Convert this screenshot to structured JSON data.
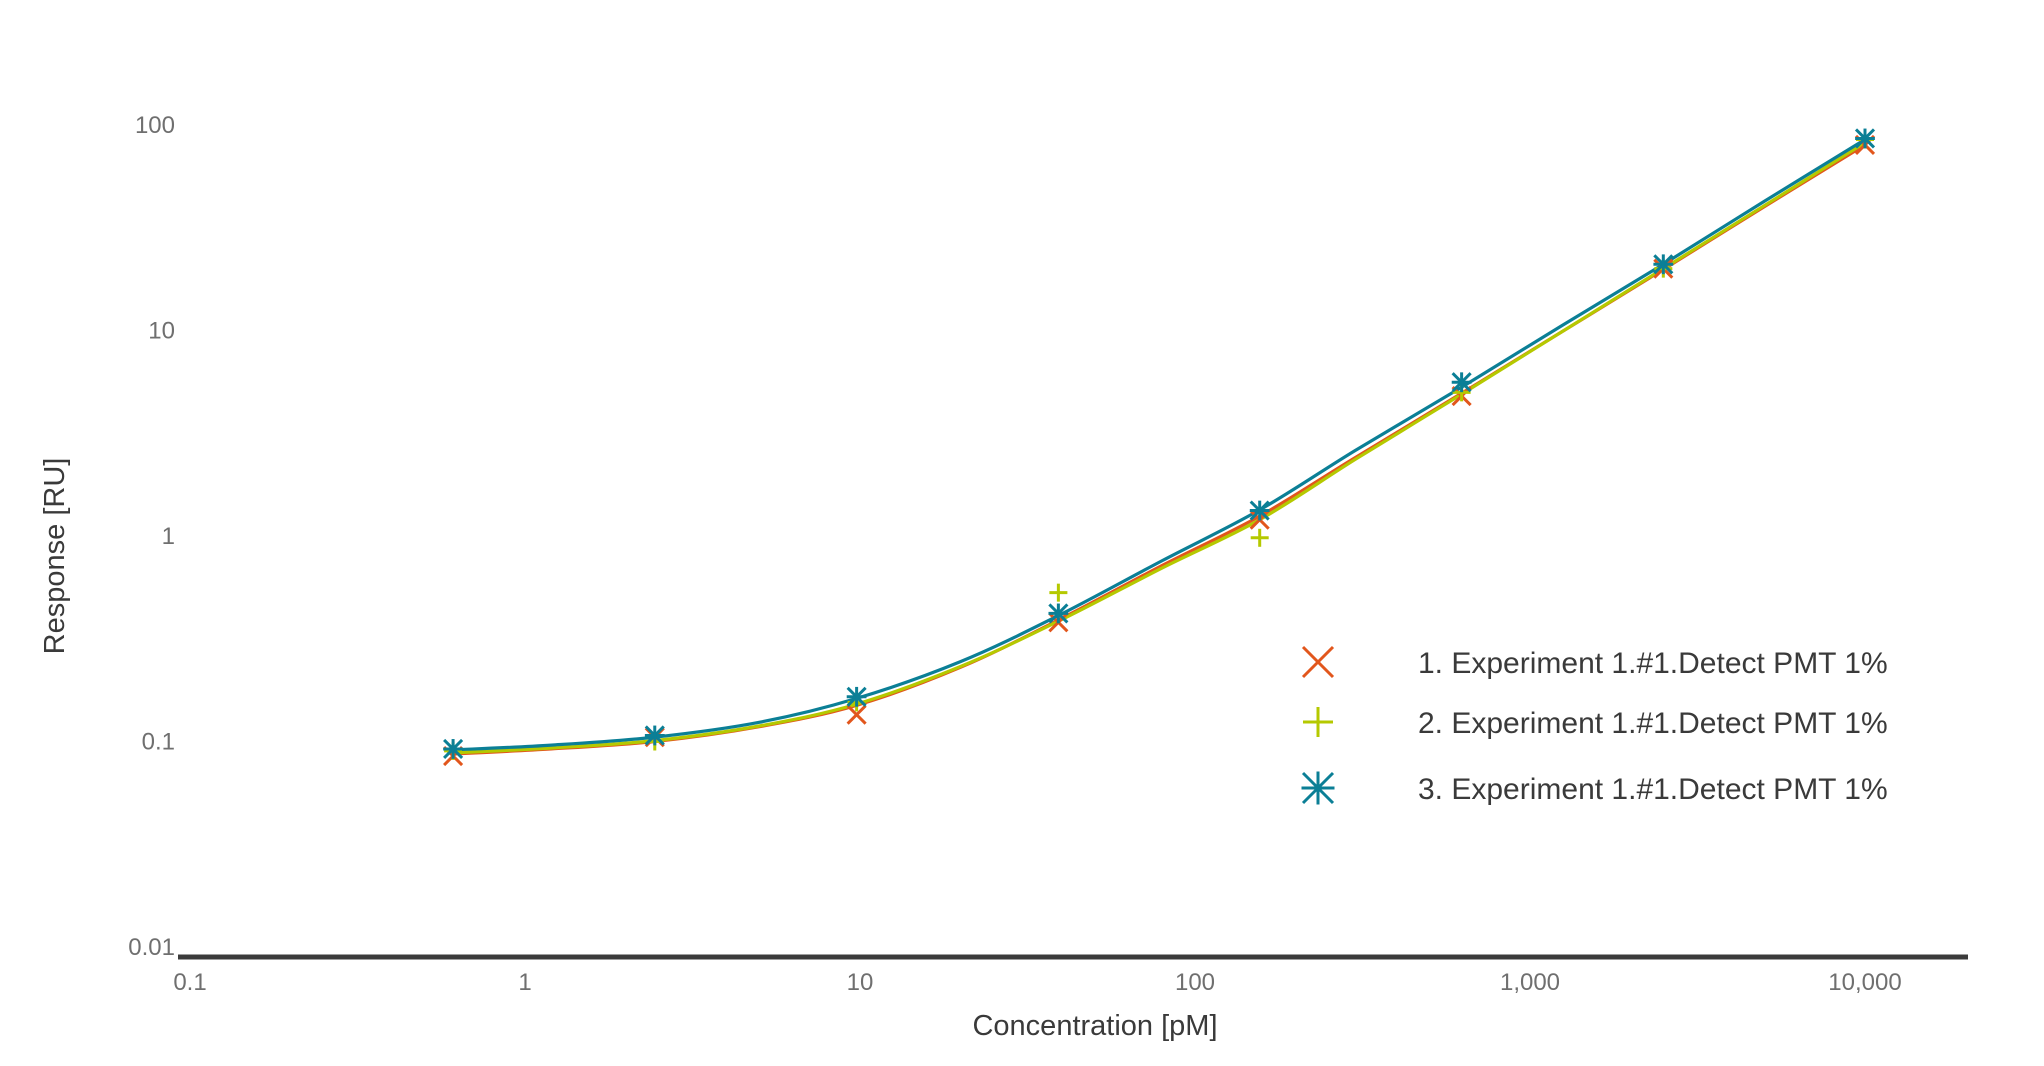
{
  "chart_data": {
    "type": "scatter",
    "title": "",
    "xlabel": "Concentration [pM]",
    "ylabel": "Response [RU]",
    "x_scale": "log",
    "y_scale": "log",
    "xlim": [
      0.1,
      20000
    ],
    "ylim": [
      0.01,
      100
    ],
    "grid": false,
    "legend_position": "right",
    "x_ticks": [
      {
        "value": 0.1,
        "label": "0.1"
      },
      {
        "value": 1,
        "label": "1"
      },
      {
        "value": 10,
        "label": "10"
      },
      {
        "value": 100,
        "label": "100"
      },
      {
        "value": 1000,
        "label": "1,000"
      },
      {
        "value": 10000,
        "label": "10,000"
      }
    ],
    "y_ticks": [
      {
        "value": 0.01,
        "label": "0.01"
      },
      {
        "value": 0.1,
        "label": "0.1"
      },
      {
        "value": 1,
        "label": "1"
      },
      {
        "value": 10,
        "label": "10"
      },
      {
        "value": 100,
        "label": "100"
      }
    ],
    "series": [
      {
        "name": "1. Experiment 1.#1.Detect PMT 1%",
        "color": "#e2561c",
        "marker": "x",
        "points": [
          [
            0.61,
            0.085
          ],
          [
            2.44,
            0.105
          ],
          [
            9.77,
            0.135
          ],
          [
            39.1,
            0.38
          ],
          [
            156,
            1.2
          ],
          [
            625,
            4.8
          ],
          [
            2500,
            20
          ],
          [
            10000,
            80
          ]
        ],
        "fit": [
          [
            0.61,
            0.087
          ],
          [
            1.2,
            0.092
          ],
          [
            2.44,
            0.1
          ],
          [
            5,
            0.118
          ],
          [
            9.77,
            0.15
          ],
          [
            20,
            0.23
          ],
          [
            39.1,
            0.39
          ],
          [
            80,
            0.72
          ],
          [
            156,
            1.25
          ],
          [
            300,
            2.4
          ],
          [
            625,
            4.95
          ],
          [
            1250,
            9.9
          ],
          [
            2500,
            19.8
          ],
          [
            5000,
            40
          ],
          [
            10000,
            80
          ]
        ]
      },
      {
        "name": "2. Experiment 1.#1.Detect PMT 1%",
        "color": "#b5c900",
        "marker": "plus",
        "points": [
          [
            0.61,
            0.09
          ],
          [
            2.44,
            0.1
          ],
          [
            9.77,
            0.155
          ],
          [
            39.1,
            0.53
          ],
          [
            156,
            0.98
          ],
          [
            625,
            5.0
          ],
          [
            2500,
            20
          ],
          [
            10000,
            85
          ]
        ],
        "fit": [
          [
            0.61,
            0.088
          ],
          [
            1.2,
            0.093
          ],
          [
            2.44,
            0.101
          ],
          [
            5,
            0.119
          ],
          [
            9.77,
            0.152
          ],
          [
            20,
            0.232
          ],
          [
            39.1,
            0.385
          ],
          [
            80,
            0.7
          ],
          [
            156,
            1.2
          ],
          [
            300,
            2.35
          ],
          [
            625,
            4.9
          ],
          [
            1250,
            9.9
          ],
          [
            2500,
            20
          ],
          [
            5000,
            40.5
          ],
          [
            10000,
            82
          ]
        ]
      },
      {
        "name": "3. Experiment 1.#1.Detect PMT 1%",
        "color": "#0b7f96",
        "marker": "asterisk",
        "points": [
          [
            0.61,
            0.092
          ],
          [
            2.44,
            0.107
          ],
          [
            9.77,
            0.165
          ],
          [
            39.1,
            0.42
          ],
          [
            156,
            1.33
          ],
          [
            625,
            5.6
          ],
          [
            2500,
            21
          ],
          [
            10000,
            86
          ]
        ],
        "fit": [
          [
            0.61,
            0.091
          ],
          [
            1.2,
            0.096
          ],
          [
            2.44,
            0.105
          ],
          [
            5,
            0.124
          ],
          [
            9.77,
            0.162
          ],
          [
            20,
            0.245
          ],
          [
            39.1,
            0.41
          ],
          [
            80,
            0.76
          ],
          [
            156,
            1.34
          ],
          [
            300,
            2.6
          ],
          [
            625,
            5.3
          ],
          [
            1250,
            10.6
          ],
          [
            2500,
            21
          ],
          [
            5000,
            42.5
          ],
          [
            10000,
            85
          ]
        ]
      }
    ]
  }
}
